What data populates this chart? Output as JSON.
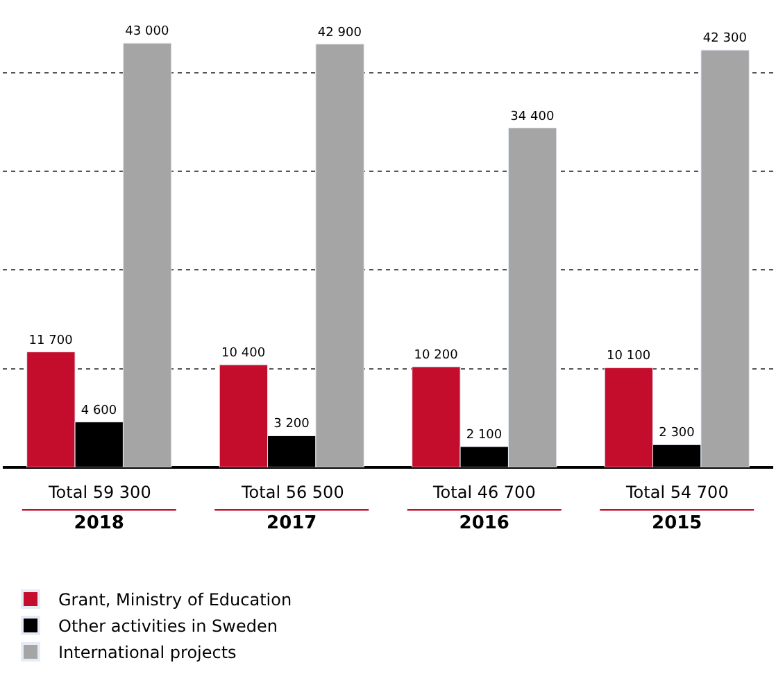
{
  "chart_data": {
    "type": "bar",
    "categories": [
      "2018",
      "2017",
      "2016",
      "2015"
    ],
    "series": [
      {
        "name": "Grant, Ministry of Education",
        "color": "#c40c2c",
        "values": [
          11700,
          10400,
          10200,
          10100
        ],
        "value_labels": [
          "11 700",
          "10 400",
          "10 200",
          "10 100"
        ]
      },
      {
        "name": "Other activities in Sweden",
        "color": "#000000",
        "values": [
          4600,
          3200,
          2100,
          2300
        ],
        "value_labels": [
          "4 600",
          "3 200",
          "2 100",
          "2 300"
        ]
      },
      {
        "name": "International projects",
        "color": "#a5a5a5",
        "values": [
          43000,
          42900,
          34400,
          42300
        ],
        "value_labels": [
          "43 000",
          "42 900",
          "34 400",
          "42 300"
        ]
      }
    ],
    "totals": [
      "Total 59 300",
      "Total 56 500",
      "Total 46 700",
      "Total 54 700"
    ],
    "yticks": [
      {
        "value": 0,
        "label": null
      },
      {
        "value": 10000,
        "label": null
      },
      {
        "value": 20000,
        "label": null
      },
      {
        "value": 30000,
        "label": null
      },
      {
        "value": 40000,
        "label": null
      }
    ],
    "tick_labels": "x",
    "grid": "y",
    "legend": "bottom left"
  }
}
